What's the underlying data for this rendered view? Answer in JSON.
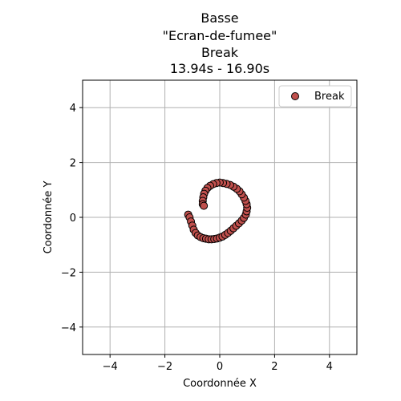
{
  "chart_data": {
    "type": "scatter",
    "title_lines": [
      "Basse",
      "\"Ecran-de-fumee\"",
      "Break",
      "13.94s - 16.90s"
    ],
    "xlabel": "Coordonnée X",
    "ylabel": "Coordonnée Y",
    "xlim": [
      -5,
      5
    ],
    "ylim": [
      -5,
      5
    ],
    "xticks": [
      -4,
      -2,
      0,
      2,
      4
    ],
    "yticks": [
      -4,
      -2,
      0,
      2,
      4
    ],
    "xtick_labels": [
      "−4",
      "−2",
      "0",
      "2",
      "4"
    ],
    "ytick_labels": [
      "−4",
      "−2",
      "0",
      "2",
      "4"
    ],
    "grid": true,
    "legend_position": "top-right",
    "series": [
      {
        "name": "Break",
        "color": "#c0504d",
        "edge_color": "#000000",
        "points": [
          [
            -1.15,
            0.1
          ],
          [
            -1.1,
            0.0
          ],
          [
            -1.05,
            -0.15
          ],
          [
            -1.0,
            -0.3
          ],
          [
            -0.95,
            -0.45
          ],
          [
            -0.88,
            -0.57
          ],
          [
            -0.8,
            -0.66
          ],
          [
            -0.7,
            -0.72
          ],
          [
            -0.6,
            -0.76
          ],
          [
            -0.5,
            -0.78
          ],
          [
            -0.4,
            -0.8
          ],
          [
            -0.3,
            -0.8
          ],
          [
            -0.2,
            -0.79
          ],
          [
            -0.1,
            -0.77
          ],
          [
            0.0,
            -0.74
          ],
          [
            0.1,
            -0.7
          ],
          [
            0.2,
            -0.64
          ],
          [
            0.3,
            -0.57
          ],
          [
            0.4,
            -0.49
          ],
          [
            0.5,
            -0.4
          ],
          [
            0.6,
            -0.31
          ],
          [
            0.7,
            -0.22
          ],
          [
            0.8,
            -0.12
          ],
          [
            0.88,
            -0.02
          ],
          [
            0.95,
            0.1
          ],
          [
            0.98,
            0.22
          ],
          [
            1.0,
            0.35
          ],
          [
            0.98,
            0.48
          ],
          [
            0.94,
            0.6
          ],
          [
            0.88,
            0.72
          ],
          [
            0.8,
            0.84
          ],
          [
            0.72,
            0.95
          ],
          [
            0.62,
            1.04
          ],
          [
            0.5,
            1.12
          ],
          [
            0.38,
            1.18
          ],
          [
            0.25,
            1.22
          ],
          [
            0.12,
            1.25
          ],
          [
            0.0,
            1.27
          ],
          [
            -0.12,
            1.25
          ],
          [
            -0.24,
            1.21
          ],
          [
            -0.35,
            1.15
          ],
          [
            -0.45,
            1.07
          ],
          [
            -0.52,
            0.97
          ],
          [
            -0.57,
            0.86
          ],
          [
            -0.6,
            0.73
          ],
          [
            -0.62,
            0.6
          ],
          [
            -0.62,
            0.48
          ],
          [
            -0.58,
            0.42
          ]
        ]
      }
    ]
  }
}
